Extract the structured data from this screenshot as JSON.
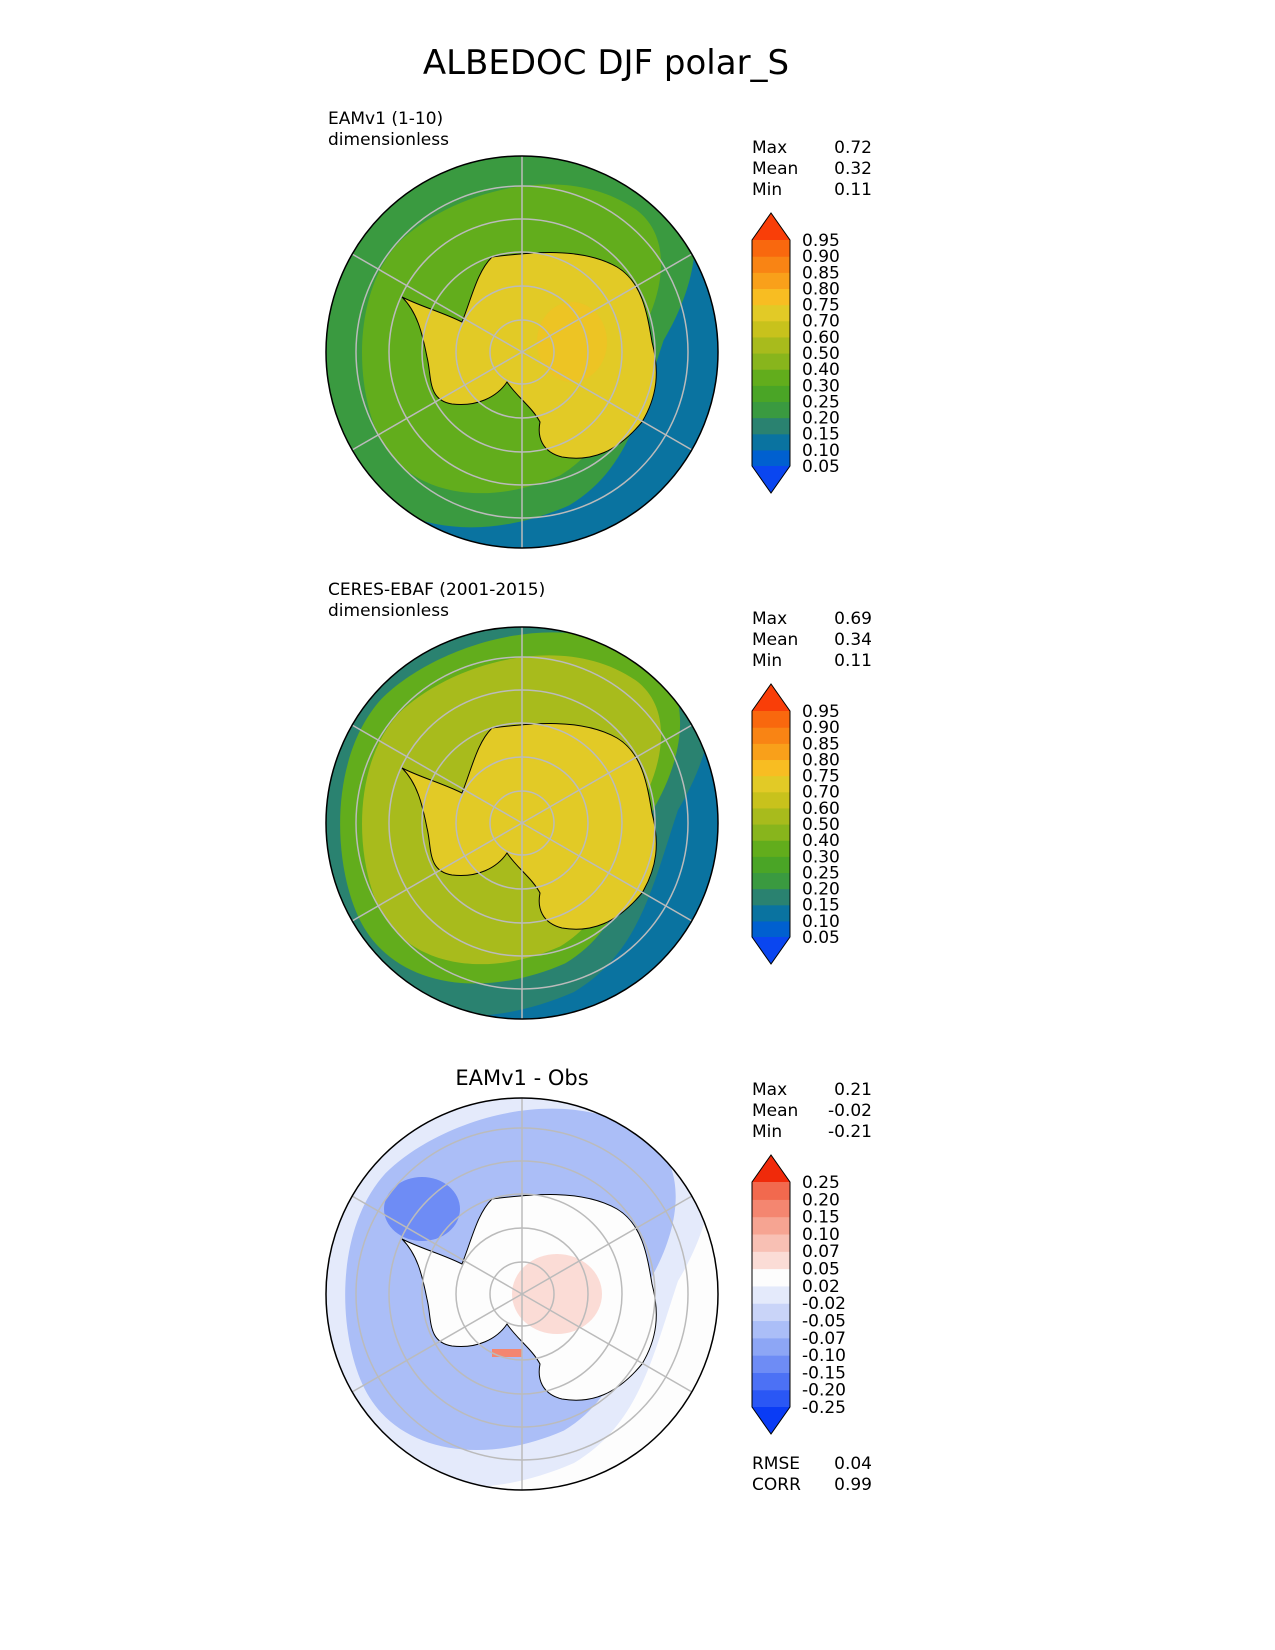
{
  "figure": {
    "title": "ALBEDOC DJF polar_S"
  },
  "chart_data": [
    {
      "type": "heatmap",
      "projection": "south-polar-stereographic",
      "title_left": "EAMv1 (1-10)",
      "units": "dimensionless",
      "stats": [
        {
          "label": "Max",
          "value": "0.72"
        },
        {
          "label": "Mean",
          "value": "0.32"
        },
        {
          "label": "Min",
          "value": "0.11"
        }
      ],
      "colorbar": {
        "levels": [
          "0.05",
          "0.10",
          "0.15",
          "0.20",
          "0.25",
          "0.30",
          "0.40",
          "0.50",
          "0.60",
          "0.70",
          "0.75",
          "0.80",
          "0.85",
          "0.90",
          "0.95"
        ],
        "colors": [
          "#0a46f0",
          "#0060d0",
          "#0a73a0",
          "#2a8270",
          "#3a9a40",
          "#4aa526",
          "#62ad1c",
          "#88b51c",
          "#a8bb1c",
          "#c8c21c",
          "#e2ca26",
          "#f8bd22",
          "#f9a01a",
          "#f98414",
          "#f9680e",
          "#f93e08"
        ]
      },
      "field": {
        "antarctica": 0.64,
        "coast_ring": 0.4,
        "sea_ice": 0.25,
        "ocean": 0.12
      }
    },
    {
      "type": "heatmap",
      "projection": "south-polar-stereographic",
      "title_left": "CERES-EBAF (2001-2015)",
      "units": "dimensionless",
      "stats": [
        {
          "label": "Max",
          "value": "0.69"
        },
        {
          "label": "Mean",
          "value": "0.34"
        },
        {
          "label": "Min",
          "value": "0.11"
        }
      ],
      "colorbar": {
        "levels": [
          "0.05",
          "0.10",
          "0.15",
          "0.20",
          "0.25",
          "0.30",
          "0.40",
          "0.50",
          "0.60",
          "0.70",
          "0.75",
          "0.80",
          "0.85",
          "0.90",
          "0.95"
        ],
        "colors": [
          "#0a46f0",
          "#0060d0",
          "#0a73a0",
          "#2a8270",
          "#3a9a40",
          "#4aa526",
          "#62ad1c",
          "#88b51c",
          "#a8bb1c",
          "#c8c21c",
          "#e2ca26",
          "#f8bd22",
          "#f9a01a",
          "#f98414",
          "#f9680e",
          "#f93e08"
        ]
      },
      "field": {
        "antarctica": 0.64,
        "coast_ring": 0.4,
        "sea_ice": 0.25,
        "ocean": 0.12
      }
    },
    {
      "type": "heatmap",
      "projection": "south-polar-stereographic",
      "title_center": "EAMv1 - Obs",
      "stats": [
        {
          "label": "Max",
          "value": "0.21"
        },
        {
          "label": "Mean",
          "value": "-0.02"
        },
        {
          "label": "Min",
          "value": "-0.21"
        }
      ],
      "bottom_stats": [
        {
          "label": "RMSE",
          "value": "0.04"
        },
        {
          "label": "CORR",
          "value": "0.99"
        }
      ],
      "colorbar": {
        "levels": [
          "-0.25",
          "-0.20",
          "-0.15",
          "-0.10",
          "-0.07",
          "-0.05",
          "-0.02",
          "0.02",
          "0.05",
          "0.07",
          "0.10",
          "0.15",
          "0.20",
          "0.25"
        ],
        "colors": [
          "#0a3cf5",
          "#2a57f5",
          "#4c71f5",
          "#6e8cf5",
          "#8da6f5",
          "#abbef7",
          "#c9d4f8",
          "#e4eafb",
          "#fdfdfd",
          "#fbdcd6",
          "#f8c0b4",
          "#f6a492",
          "#f48670",
          "#f2694e",
          "#f04c2e",
          "#f02a0a"
        ]
      },
      "field": {
        "interior_positive": 0.03,
        "coastal_ring_negative": -0.08,
        "open_ocean": 0.0
      }
    }
  ]
}
